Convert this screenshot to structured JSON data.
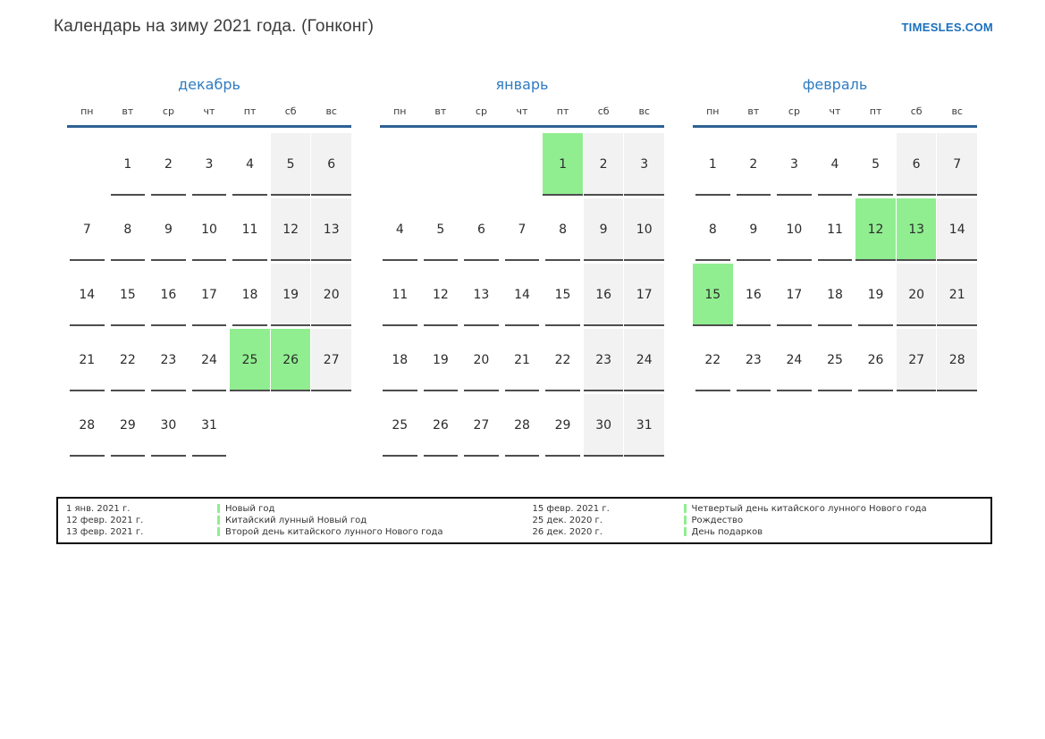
{
  "page": {
    "title": "Календарь на зиму 2021 года. (Гонконг)",
    "brand": "TIMESLES.COM"
  },
  "colors": {
    "accent_blue": "#2f7cc0",
    "header_rule_blue": "#2d6193",
    "holiday_green": "#90ee90",
    "weekend_gray": "#f2f2f2",
    "underline_gray": "#4d4d4d",
    "brand_blue": "#1b70bd"
  },
  "weekdays": [
    "пн",
    "вт",
    "ср",
    "чт",
    "пт",
    "сб",
    "вс"
  ],
  "calendars": [
    {
      "month": "декабрь",
      "weeks": [
        [
          null,
          1,
          2,
          3,
          4,
          5,
          6
        ],
        [
          7,
          8,
          9,
          10,
          11,
          12,
          13
        ],
        [
          14,
          15,
          16,
          17,
          18,
          19,
          20
        ],
        [
          21,
          22,
          23,
          24,
          25,
          26,
          27
        ],
        [
          28,
          29,
          30,
          31,
          null,
          null,
          null
        ]
      ],
      "holidays": [
        25,
        26
      ]
    },
    {
      "month": "январь",
      "weeks": [
        [
          null,
          null,
          null,
          null,
          1,
          2,
          3
        ],
        [
          4,
          5,
          6,
          7,
          8,
          9,
          10
        ],
        [
          11,
          12,
          13,
          14,
          15,
          16,
          17
        ],
        [
          18,
          19,
          20,
          21,
          22,
          23,
          24
        ],
        [
          25,
          26,
          27,
          28,
          29,
          30,
          31
        ]
      ],
      "holidays": [
        1
      ]
    },
    {
      "month": "февраль",
      "weeks": [
        [
          1,
          2,
          3,
          4,
          5,
          6,
          7
        ],
        [
          8,
          9,
          10,
          11,
          12,
          13,
          14
        ],
        [
          15,
          16,
          17,
          18,
          19,
          20,
          21
        ],
        [
          22,
          23,
          24,
          25,
          26,
          27,
          28
        ]
      ],
      "holidays": [
        12,
        13,
        15
      ]
    }
  ],
  "legend": {
    "columns": [
      {
        "entries": [
          {
            "date": "1 янв. 2021 г.",
            "name": "Новый год"
          },
          {
            "date": "12 февр. 2021 г.",
            "name": "Китайский лунный Новый год"
          },
          {
            "date": "13 февр. 2021 г.",
            "name": "Второй день китайского лунного Нового года"
          }
        ]
      },
      {
        "entries": [
          {
            "date": "15 февр. 2021 г.",
            "name": "Четвертый день китайского лунного Нового года"
          },
          {
            "date": "25 дек. 2020 г.",
            "name": "Рождество"
          },
          {
            "date": "26 дек. 2020 г.",
            "name": "День подарков"
          }
        ]
      }
    ]
  }
}
